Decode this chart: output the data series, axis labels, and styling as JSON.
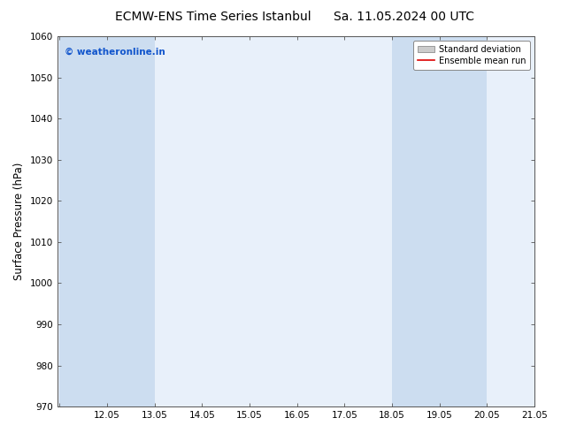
{
  "title_left": "ECMW-ENS Time Series Istanbul",
  "title_right": "Sa. 11.05.2024 00 UTC",
  "ylabel": "Surface Pressure (hPa)",
  "ylim": [
    970,
    1060
  ],
  "yticks": [
    970,
    980,
    990,
    1000,
    1010,
    1020,
    1030,
    1040,
    1050,
    1060
  ],
  "xlim": [
    11.0,
    21.05
  ],
  "xticks": [
    11.05,
    12.05,
    13.05,
    14.05,
    15.05,
    16.05,
    17.05,
    18.05,
    19.05,
    20.05,
    21.05
  ],
  "xticklabels": [
    "",
    "12.05",
    "13.05",
    "14.05",
    "15.05",
    "16.05",
    "17.05",
    "18.05",
    "19.05",
    "20.05",
    "21.05"
  ],
  "background_color": "#ffffff",
  "plot_bg_color": "#e8f0fa",
  "shaded_bands": [
    {
      "x_start": 11.05,
      "x_end": 13.05
    },
    {
      "x_start": 18.05,
      "x_end": 20.05
    }
  ],
  "shaded_color": "#ccddf0",
  "watermark_text": "© weatheronline.in",
  "watermark_color": "#1155cc",
  "legend_std_color": "#cccccc",
  "legend_std_edge": "#999999",
  "legend_mean_color": "#dd0000",
  "title_fontsize": 10,
  "tick_fontsize": 7.5,
  "ylabel_fontsize": 8.5,
  "legend_fontsize": 7
}
